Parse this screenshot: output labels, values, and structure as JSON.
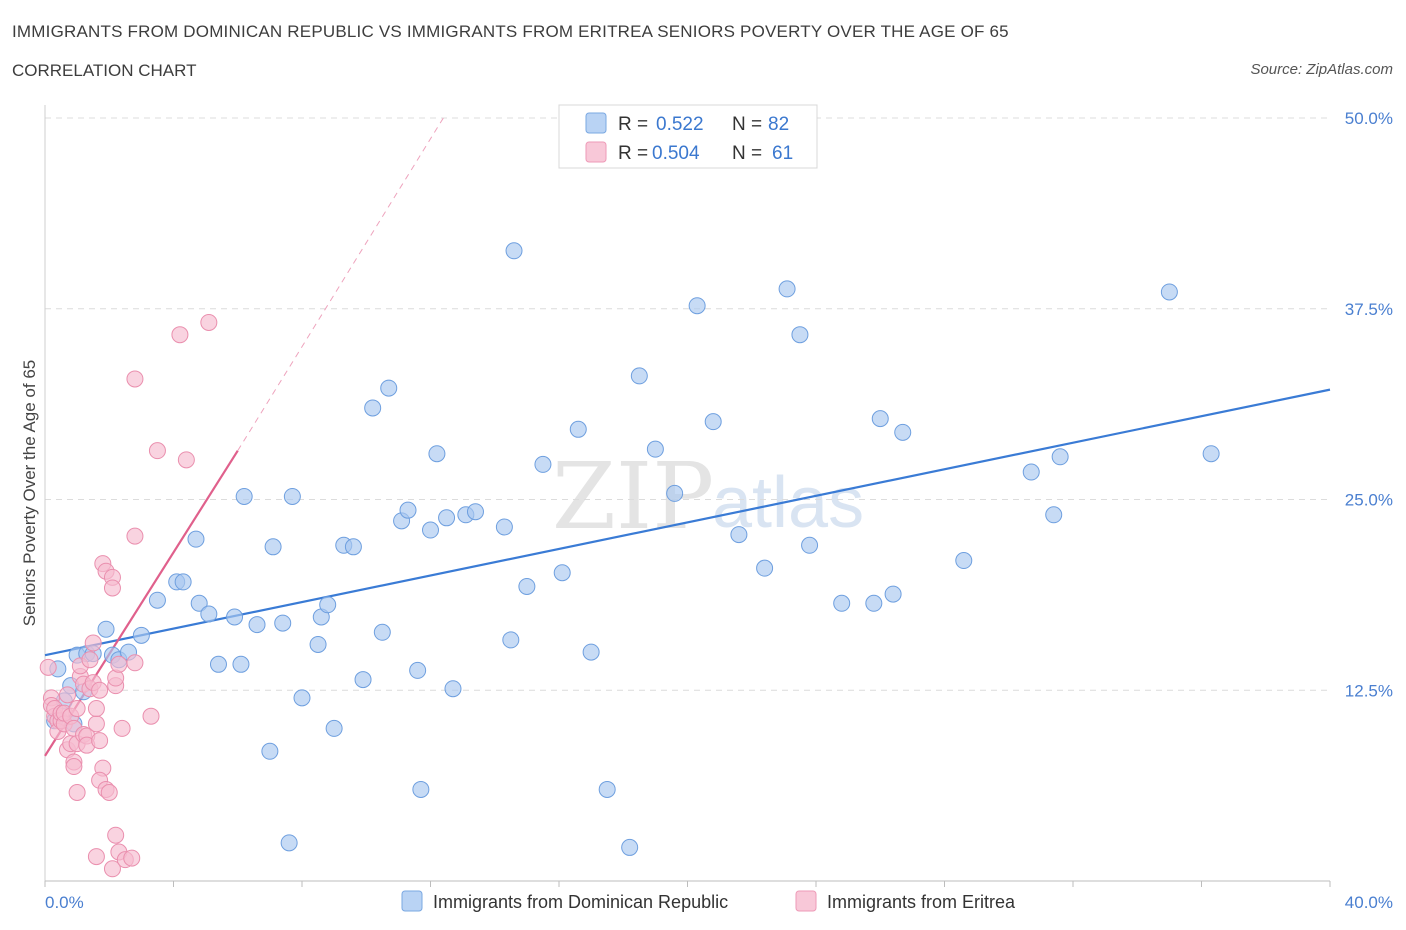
{
  "header": {
    "title": "IMMIGRANTS FROM DOMINICAN REPUBLIC VS IMMIGRANTS FROM ERITREA SENIORS POVERTY OVER THE AGE OF 65",
    "subtitle": "CORRELATION CHART",
    "source": "Source: ZipAtlas.com"
  },
  "watermark": {
    "zip": "ZIP",
    "atlas": "atlas"
  },
  "legend_box": {
    "r_label": "R =",
    "n_label": "N =",
    "rows": [
      {
        "r": "0.522",
        "n": "82"
      },
      {
        "r": "0.504",
        "n": "61"
      }
    ]
  },
  "chart_data": {
    "type": "scatter",
    "title": "IMMIGRANTS FROM DOMINICAN REPUBLIC VS IMMIGRANTS FROM ERITREA SENIORS POVERTY OVER THE AGE OF 65",
    "xlabel": "",
    "ylabel": "Seniors Poverty Over the Age of 65",
    "xlim": [
      0,
      40
    ],
    "ylim": [
      0,
      50
    ],
    "x_tick_labels": [
      "0.0%",
      "40.0%"
    ],
    "y_ticks": [
      12.5,
      25.0,
      37.5,
      50.0
    ],
    "y_tick_labels": [
      "12.5%",
      "25.0%",
      "37.5%",
      "50.0%"
    ],
    "grid": "horizontal dashed",
    "legend_position": "top-center and bottom",
    "series": [
      {
        "name": "Immigrants from Dominican Republic",
        "color": "#a9c8f0",
        "stroke": "#6e9fdf",
        "line_color": "#3a7bd5",
        "r": 0.522,
        "n": 82,
        "trend": {
          "x0": 0.0,
          "y0": 14.8,
          "x1": 40.0,
          "y1": 32.2
        },
        "points": [
          [
            0.3,
            10.5
          ],
          [
            0.6,
            11.8
          ],
          [
            0.8,
            12.8
          ],
          [
            1.0,
            14.8
          ],
          [
            1.3,
            14.9
          ],
          [
            1.5,
            14.9
          ],
          [
            1.9,
            16.5
          ],
          [
            2.1,
            14.8
          ],
          [
            2.3,
            14.5
          ],
          [
            2.6,
            15.0
          ],
          [
            3.0,
            16.1
          ],
          [
            3.5,
            18.4
          ],
          [
            4.1,
            19.6
          ],
          [
            4.3,
            19.6
          ],
          [
            4.7,
            22.4
          ],
          [
            4.8,
            18.2
          ],
          [
            5.1,
            17.5
          ],
          [
            5.4,
            14.2
          ],
          [
            5.9,
            17.3
          ],
          [
            6.1,
            14.2
          ],
          [
            6.2,
            25.2
          ],
          [
            6.6,
            16.8
          ],
          [
            7.0,
            8.5
          ],
          [
            7.1,
            21.9
          ],
          [
            7.4,
            16.9
          ],
          [
            7.6,
            2.5
          ],
          [
            7.7,
            25.2
          ],
          [
            8.0,
            12.0
          ],
          [
            8.5,
            15.5
          ],
          [
            8.6,
            17.3
          ],
          [
            8.8,
            18.1
          ],
          [
            9.0,
            10.0
          ],
          [
            9.3,
            22.0
          ],
          [
            9.6,
            21.9
          ],
          [
            9.9,
            13.2
          ],
          [
            10.2,
            31.0
          ],
          [
            10.5,
            16.3
          ],
          [
            10.7,
            32.3
          ],
          [
            11.1,
            23.6
          ],
          [
            11.3,
            24.3
          ],
          [
            11.6,
            13.8
          ],
          [
            11.7,
            6.0
          ],
          [
            12.0,
            23.0
          ],
          [
            12.2,
            28.0
          ],
          [
            12.5,
            23.8
          ],
          [
            12.7,
            12.6
          ],
          [
            13.1,
            24.0
          ],
          [
            13.4,
            24.2
          ],
          [
            14.3,
            23.2
          ],
          [
            14.5,
            15.8
          ],
          [
            14.6,
            41.3
          ],
          [
            15.0,
            19.3
          ],
          [
            15.5,
            27.3
          ],
          [
            16.1,
            20.2
          ],
          [
            16.6,
            29.6
          ],
          [
            17.0,
            15.0
          ],
          [
            17.5,
            6.0
          ],
          [
            18.2,
            2.2
          ],
          [
            18.5,
            33.1
          ],
          [
            19.0,
            28.3
          ],
          [
            19.6,
            25.4
          ],
          [
            20.3,
            37.7
          ],
          [
            20.8,
            30.1
          ],
          [
            21.6,
            22.7
          ],
          [
            22.4,
            20.5
          ],
          [
            23.1,
            38.8
          ],
          [
            23.5,
            35.8
          ],
          [
            23.8,
            22.0
          ],
          [
            24.8,
            18.2
          ],
          [
            25.8,
            18.2
          ],
          [
            26.0,
            30.3
          ],
          [
            26.4,
            18.8
          ],
          [
            26.7,
            29.4
          ],
          [
            28.6,
            21.0
          ],
          [
            30.7,
            26.8
          ],
          [
            31.4,
            24.0
          ],
          [
            31.6,
            27.8
          ],
          [
            35.0,
            38.6
          ],
          [
            36.3,
            28.0
          ],
          [
            0.4,
            13.9
          ],
          [
            0.9,
            10.3
          ],
          [
            1.2,
            12.4
          ]
        ]
      },
      {
        "name": "Immigrants from Eritrea",
        "color": "#f6bccf",
        "stroke": "#ea8fae",
        "line_color": "#e0608c",
        "r": 0.504,
        "n": 61,
        "trend": {
          "x0": 0.0,
          "y0": 8.2,
          "x1": 6.0,
          "y1": 28.2,
          "dashed_to": {
            "x": 12.4,
            "y": 50.0
          }
        },
        "points": [
          [
            0.1,
            14.0
          ],
          [
            0.2,
            12.0
          ],
          [
            0.2,
            11.5
          ],
          [
            0.3,
            10.8
          ],
          [
            0.3,
            11.3
          ],
          [
            0.4,
            10.5
          ],
          [
            0.4,
            9.8
          ],
          [
            0.5,
            10.5
          ],
          [
            0.5,
            11.0
          ],
          [
            0.6,
            10.3
          ],
          [
            0.6,
            11.0
          ],
          [
            0.7,
            12.2
          ],
          [
            0.7,
            8.6
          ],
          [
            0.8,
            10.8
          ],
          [
            0.8,
            9.0
          ],
          [
            0.9,
            7.8
          ],
          [
            0.9,
            10.0
          ],
          [
            1.0,
            11.3
          ],
          [
            1.0,
            9.0
          ],
          [
            1.1,
            13.4
          ],
          [
            1.1,
            14.1
          ],
          [
            1.2,
            12.9
          ],
          [
            1.2,
            9.6
          ],
          [
            1.3,
            9.5
          ],
          [
            1.3,
            8.9
          ],
          [
            1.4,
            12.6
          ],
          [
            1.4,
            14.5
          ],
          [
            1.5,
            15.6
          ],
          [
            1.5,
            13.0
          ],
          [
            1.6,
            10.3
          ],
          [
            1.6,
            11.3
          ],
          [
            1.7,
            9.2
          ],
          [
            1.8,
            7.4
          ],
          [
            0.9,
            7.5
          ],
          [
            1.0,
            5.8
          ],
          [
            1.7,
            6.6
          ],
          [
            1.9,
            6.0
          ],
          [
            2.0,
            5.8
          ],
          [
            2.1,
            0.8
          ],
          [
            2.2,
            3.0
          ],
          [
            2.3,
            1.9
          ],
          [
            1.6,
            1.6
          ],
          [
            2.5,
            1.4
          ],
          [
            2.7,
            1.5
          ],
          [
            1.7,
            12.5
          ],
          [
            2.2,
            12.8
          ],
          [
            2.2,
            13.3
          ],
          [
            2.3,
            14.2
          ],
          [
            2.4,
            10.0
          ],
          [
            2.8,
            14.3
          ],
          [
            2.8,
            22.6
          ],
          [
            3.3,
            10.8
          ],
          [
            1.8,
            20.8
          ],
          [
            1.9,
            20.3
          ],
          [
            2.1,
            19.9
          ],
          [
            2.1,
            19.2
          ],
          [
            3.5,
            28.2
          ],
          [
            4.4,
            27.6
          ],
          [
            4.2,
            35.8
          ],
          [
            5.1,
            36.6
          ],
          [
            2.8,
            32.9
          ]
        ]
      }
    ]
  },
  "bottom_legend": [
    {
      "label": "Immigrants from Dominican Republic"
    },
    {
      "label": "Immigrants from Eritrea"
    }
  ]
}
